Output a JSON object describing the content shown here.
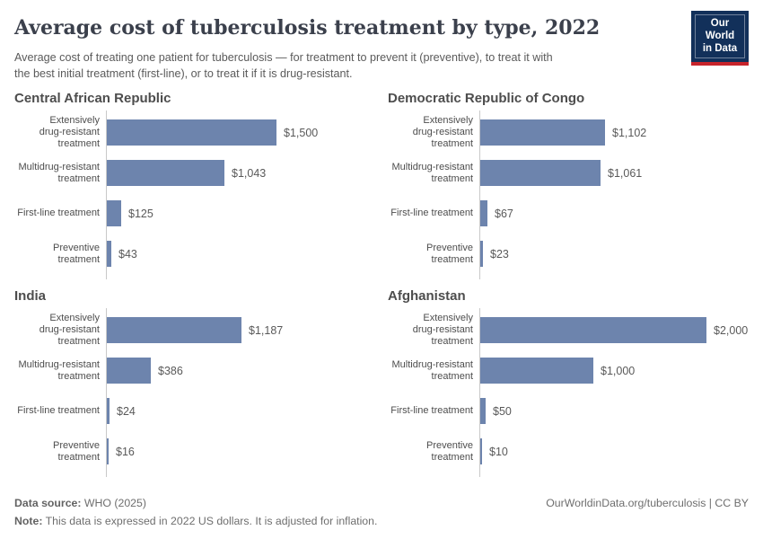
{
  "header": {
    "title": "Average cost of tuberculosis treatment by type, 2022",
    "subtitle": "Average cost of treating one patient for tuberculosis — for treatment to prevent it (preventive), to treat it with\nthe best initial treatment (first-line), or to treat it if it is drug-resistant.",
    "logo": {
      "line1": "Our World",
      "line2": "in Data"
    }
  },
  "chart_data": {
    "type": "bar",
    "orientation": "horizontal",
    "title": "Average cost of tuberculosis treatment by type, 2022",
    "xmax": 2000,
    "bar_color": "#6d84ad",
    "axis_line_color": "#c9c9c9",
    "categories": [
      "Extensively\ndrug-resistant\ntreatment",
      "Multidrug-resistant\ntreatment",
      "First-line treatment",
      "Preventive\ntreatment"
    ],
    "panels": [
      {
        "title": "Central African Republic",
        "values": [
          1500,
          1043,
          125,
          43
        ],
        "value_labels": [
          "$1,500",
          "$1,043",
          "$125",
          "$43"
        ]
      },
      {
        "title": "Democratic Republic of Congo",
        "values": [
          1102,
          1061,
          67,
          23
        ],
        "value_labels": [
          "$1,102",
          "$1,061",
          "$67",
          "$23"
        ]
      },
      {
        "title": "India",
        "values": [
          1187,
          386,
          24,
          16
        ],
        "value_labels": [
          "$1,187",
          "$386",
          "$24",
          "$16"
        ]
      },
      {
        "title": "Afghanistan",
        "values": [
          2000,
          1000,
          50,
          10
        ],
        "value_labels": [
          "$2,000",
          "$1,000",
          "$50",
          "$10"
        ]
      }
    ]
  },
  "footer": {
    "source_label": "Data source:",
    "source_value": " WHO (2025)",
    "attribution": "OurWorldinData.org/tuberculosis | CC BY",
    "note_label": "Note:",
    "note_text": " This data is expressed in 2022 US dollars. It is adjusted for inflation."
  },
  "colors": {
    "title": "#3b404c",
    "bar": "#6d84ad",
    "logo_navy": "#12305a",
    "logo_red": "#c7242b",
    "text_gray": "#5a5a5a"
  }
}
